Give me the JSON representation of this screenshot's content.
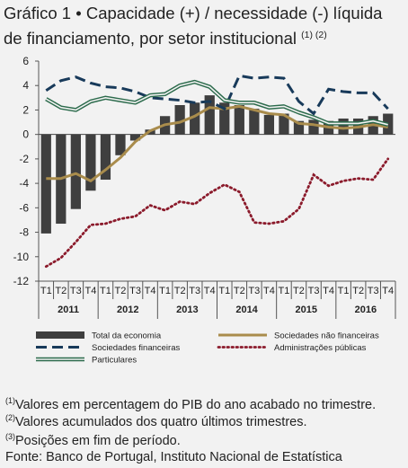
{
  "header": {
    "label": "Gráfico 1",
    "bullet": "•",
    "title": "Capacidade (+) / necessidade (-) líquida de financiamento, por setor institucional",
    "superscript": "(1) (2)"
  },
  "footnotes": [
    {
      "sup": "(1)",
      "text": "Valores em percentagem do PIB do ano acabado no trimestre."
    },
    {
      "sup": "(2)",
      "text": "Valores acumulados dos quatro últimos trimestres."
    },
    {
      "sup": "(3)",
      "text": "Posições em fim de período."
    }
  ],
  "source": "Fonte: Banco de Portugal, Instituto Nacional de Estatística",
  "chart_data": {
    "type": "bar",
    "categories": [
      "T1",
      "T2",
      "T3",
      "T4",
      "T1",
      "T2",
      "T3",
      "T4",
      "T1",
      "T2",
      "T3",
      "T4",
      "T1",
      "T2",
      "T3",
      "T4",
      "T1",
      "T2",
      "T3",
      "T4",
      "T1",
      "T2",
      "T3",
      "T4"
    ],
    "years": [
      "2011",
      "2012",
      "2013",
      "2014",
      "2015",
      "2016"
    ],
    "ylim": [
      -12,
      6
    ],
    "yticks": [
      6,
      4,
      2,
      0,
      -2,
      -4,
      -6,
      -8,
      -10,
      -12
    ],
    "grid": false,
    "legend_position": "bottom",
    "series": [
      {
        "name": "Total da economia",
        "kind": "bar",
        "color": "#3f3f3f",
        "values": [
          -8.1,
          -7.3,
          -6.1,
          -4.6,
          -3.7,
          -1.7,
          -0.5,
          0.4,
          1.5,
          2.4,
          2.6,
          3.2,
          2.6,
          2.4,
          2.1,
          1.6,
          1.7,
          1.1,
          1.2,
          1.1,
          1.3,
          1.3,
          1.5,
          1.7
        ]
      },
      {
        "name": "Sociedades não financeiras",
        "kind": "line",
        "color": "#a98c4c",
        "dash": "solid",
        "values": [
          -3.6,
          -3.6,
          -3.2,
          -3.8,
          -2.9,
          -1.9,
          -0.6,
          0.3,
          0.8,
          1.0,
          1.5,
          2.2,
          2.1,
          2.3,
          2.0,
          1.7,
          1.6,
          0.9,
          0.8,
          0.6,
          0.5,
          0.6,
          0.8,
          0.6
        ]
      },
      {
        "name": "Sociedades financeiras",
        "kind": "line",
        "color": "#183a5a",
        "dash": "dashed",
        "values": [
          3.6,
          4.4,
          4.7,
          4.2,
          3.9,
          3.8,
          3.5,
          3.0,
          2.9,
          2.8,
          2.6,
          2.7,
          2.1,
          4.8,
          4.6,
          4.7,
          4.6,
          2.7,
          1.7,
          3.7,
          3.5,
          3.4,
          3.4,
          2.1
        ]
      },
      {
        "name": "Administrações públicas",
        "kind": "line",
        "color": "#8b1a2b",
        "dash": "dotted",
        "values": [
          -10.8,
          -10.1,
          -8.8,
          -7.4,
          -7.3,
          -6.9,
          -6.7,
          -5.8,
          -6.2,
          -5.5,
          -5.7,
          -4.8,
          -4.1,
          -4.7,
          -7.2,
          -7.3,
          -7.1,
          -6.1,
          -3.3,
          -4.2,
          -3.8,
          -3.6,
          -3.7,
          -2.0
        ]
      },
      {
        "name": "Particulares",
        "kind": "line",
        "color": "#2c6b4c",
        "dash": "double",
        "values": [
          2.9,
          2.2,
          2.0,
          2.7,
          3.0,
          2.8,
          2.6,
          3.2,
          3.3,
          4.0,
          4.3,
          3.9,
          2.8,
          2.6,
          2.6,
          2.2,
          2.3,
          1.8,
          1.4,
          0.9,
          0.9,
          0.9,
          1.1,
          0.8
        ]
      }
    ]
  }
}
